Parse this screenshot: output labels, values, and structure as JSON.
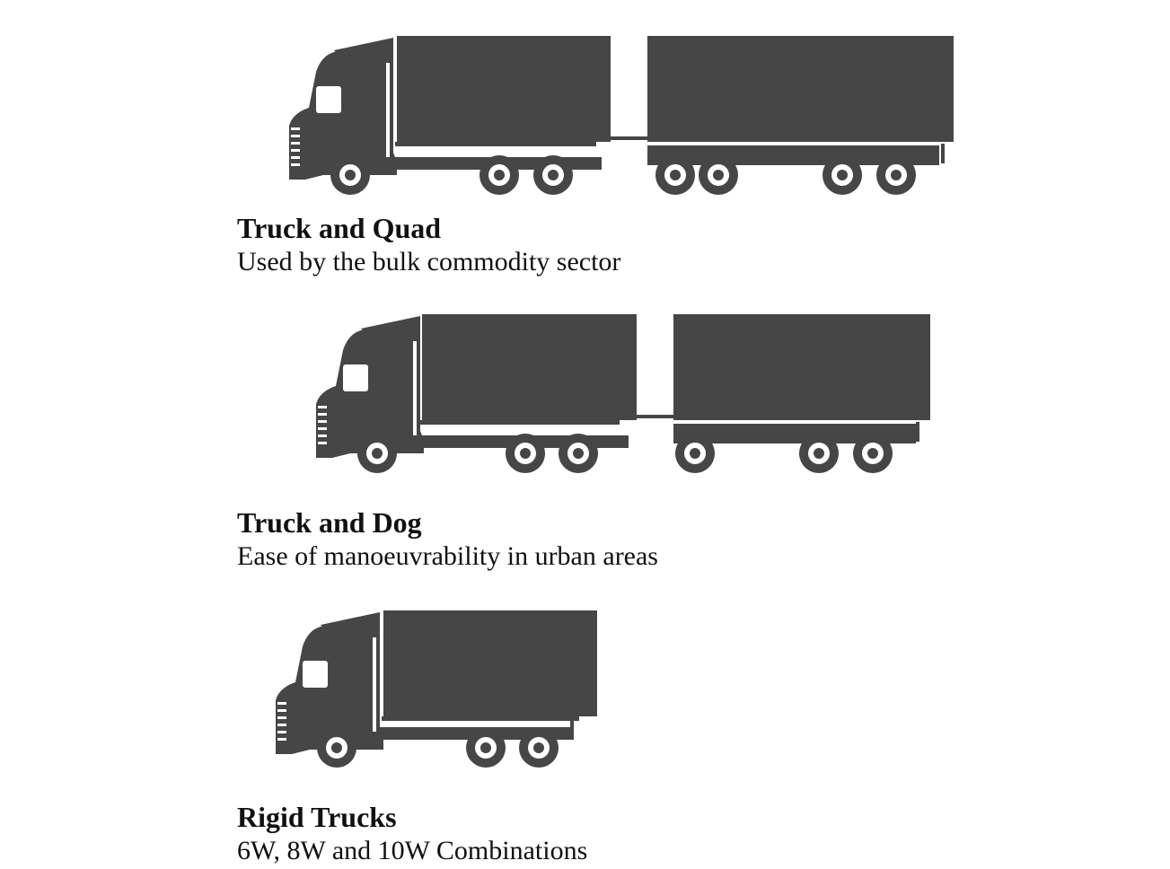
{
  "colors": {
    "truck": "#464646",
    "background": "#ffffff",
    "text": "#111111"
  },
  "sections": [
    {
      "title": "Truck and Quad",
      "description": "Used by the bulk commodity sector",
      "icon": "truck-and-quad-icon"
    },
    {
      "title": "Truck and Dog",
      "description": "Ease of manoeuvrability in urban areas",
      "icon": "truck-and-dog-icon"
    },
    {
      "title": "Rigid Trucks",
      "description": "6W, 8W and 10W Combinations",
      "icon": "rigid-truck-icon"
    }
  ]
}
